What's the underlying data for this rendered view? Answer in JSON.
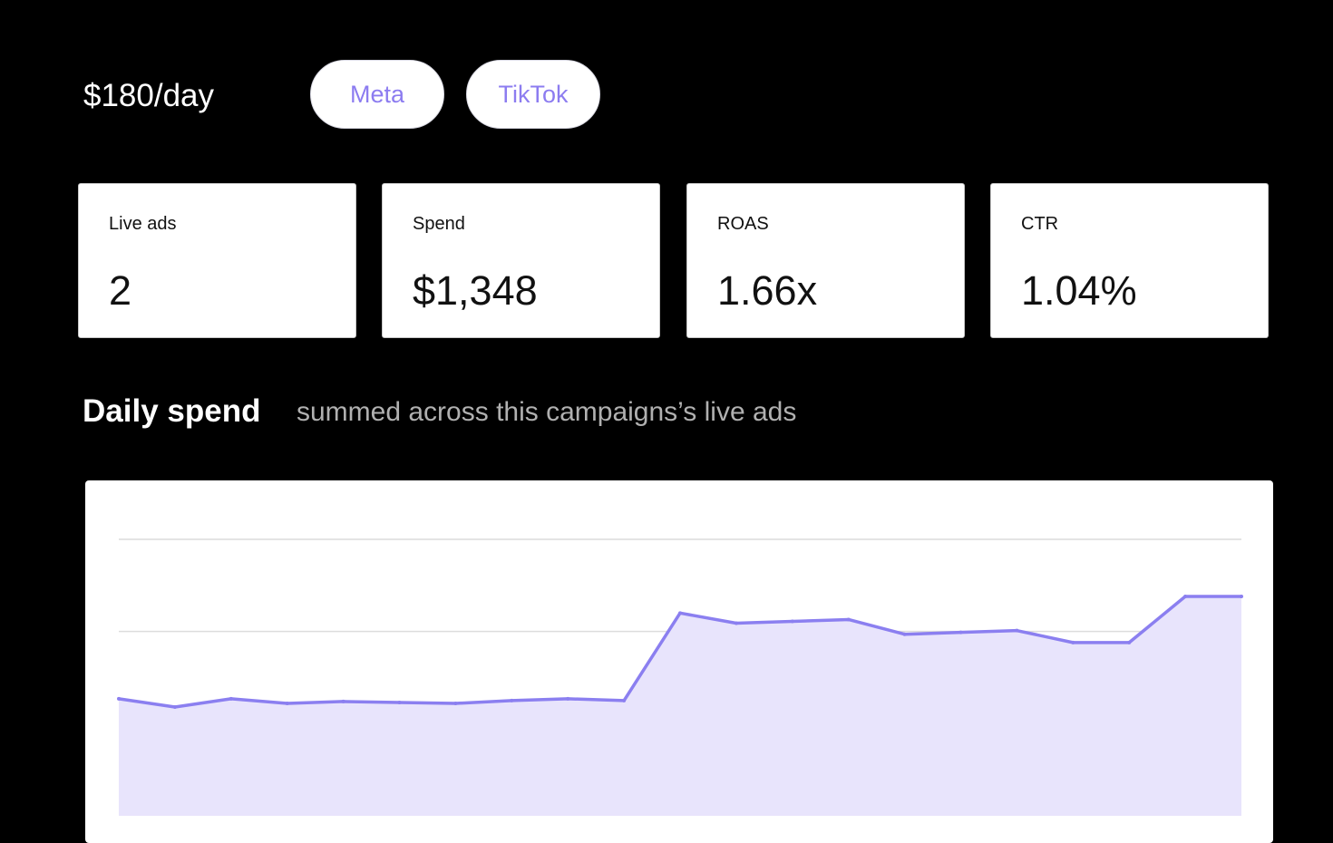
{
  "header": {
    "budget": "$180/day",
    "platforms": [
      "Meta",
      "TikTok"
    ]
  },
  "metrics": [
    {
      "label": "Live ads",
      "value": "2"
    },
    {
      "label": "Spend",
      "value": "$1,348"
    },
    {
      "label": "ROAS",
      "value": "1.66x"
    },
    {
      "label": "CTR",
      "value": "1.04%"
    }
  ],
  "section": {
    "title": "Daily spend",
    "subtitle": "summed across this campaigns’s live ads"
  },
  "colors": {
    "accent": "#8c7cf0",
    "line": "#8b7ff0",
    "fill": "#e8e4fc",
    "grid": "#dcdcdc"
  },
  "chart_data": {
    "type": "area",
    "title": "",
    "xlabel": "",
    "ylabel": "",
    "grid": true,
    "ylim": [
      0,
      3
    ],
    "x": [
      1,
      2,
      3,
      4,
      5,
      6,
      7,
      8,
      9,
      10,
      11,
      12,
      13,
      14,
      15,
      16,
      17,
      18,
      19,
      20
    ],
    "series": [
      {
        "values": [
          1.27,
          1.18,
          1.27,
          1.22,
          1.24,
          1.23,
          1.22,
          1.25,
          1.27,
          1.25,
          2.2,
          2.09,
          2.11,
          2.13,
          1.97,
          1.99,
          2.01,
          1.88,
          1.88,
          2.38
        ]
      }
    ],
    "extra_points": [
      2.38
    ]
  }
}
